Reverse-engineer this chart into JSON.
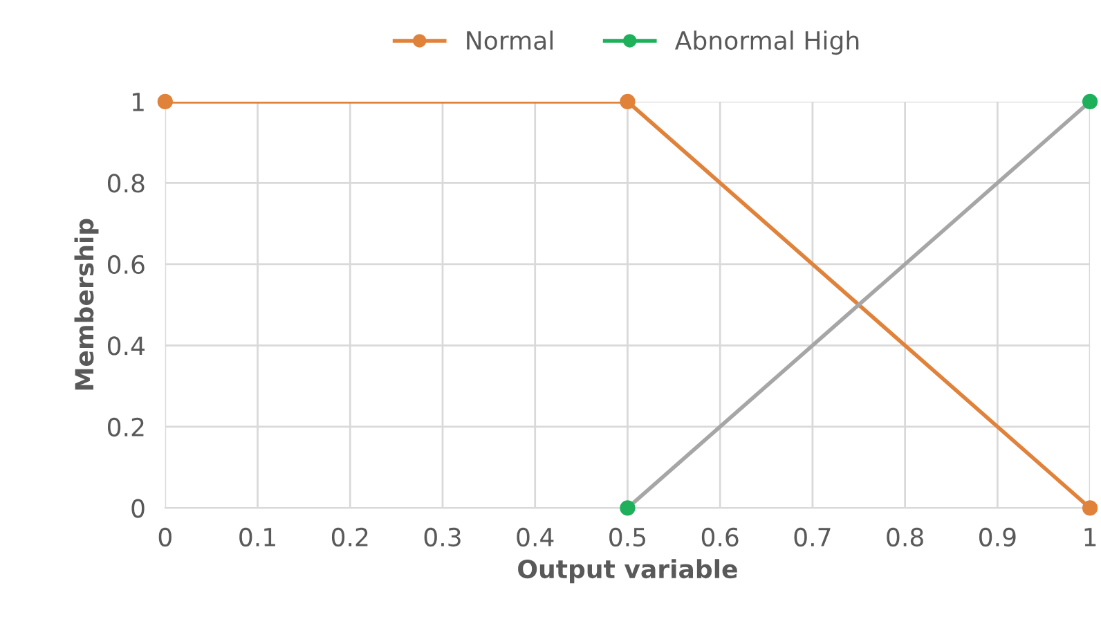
{
  "chart_data": {
    "type": "line",
    "xlabel": "Output variable",
    "ylabel": "Membership",
    "series": [
      {
        "name": "Normal",
        "color": "#e0823a",
        "x": [
          0,
          0.5,
          1
        ],
        "values": [
          1,
          1,
          0
        ]
      },
      {
        "name": "Abnormal High",
        "color": "#a6a6a6",
        "colors": [
          "#1eb05a",
          "#1eb05a"
        ],
        "x": [
          0.5,
          1
        ],
        "values": [
          0,
          1
        ]
      }
    ],
    "xlim": [
      0,
      1
    ],
    "xticks": [
      0,
      0.1,
      0.2,
      0.3,
      0.4,
      0.5,
      0.6,
      0.7,
      0.8,
      0.9,
      1
    ],
    "ylim": [
      0,
      1
    ],
    "yticks": [
      0,
      0.2,
      0.4,
      0.6,
      0.8,
      1
    ],
    "grid": true,
    "legend": "top",
    "marker": "circle",
    "line_style": "solid"
  }
}
